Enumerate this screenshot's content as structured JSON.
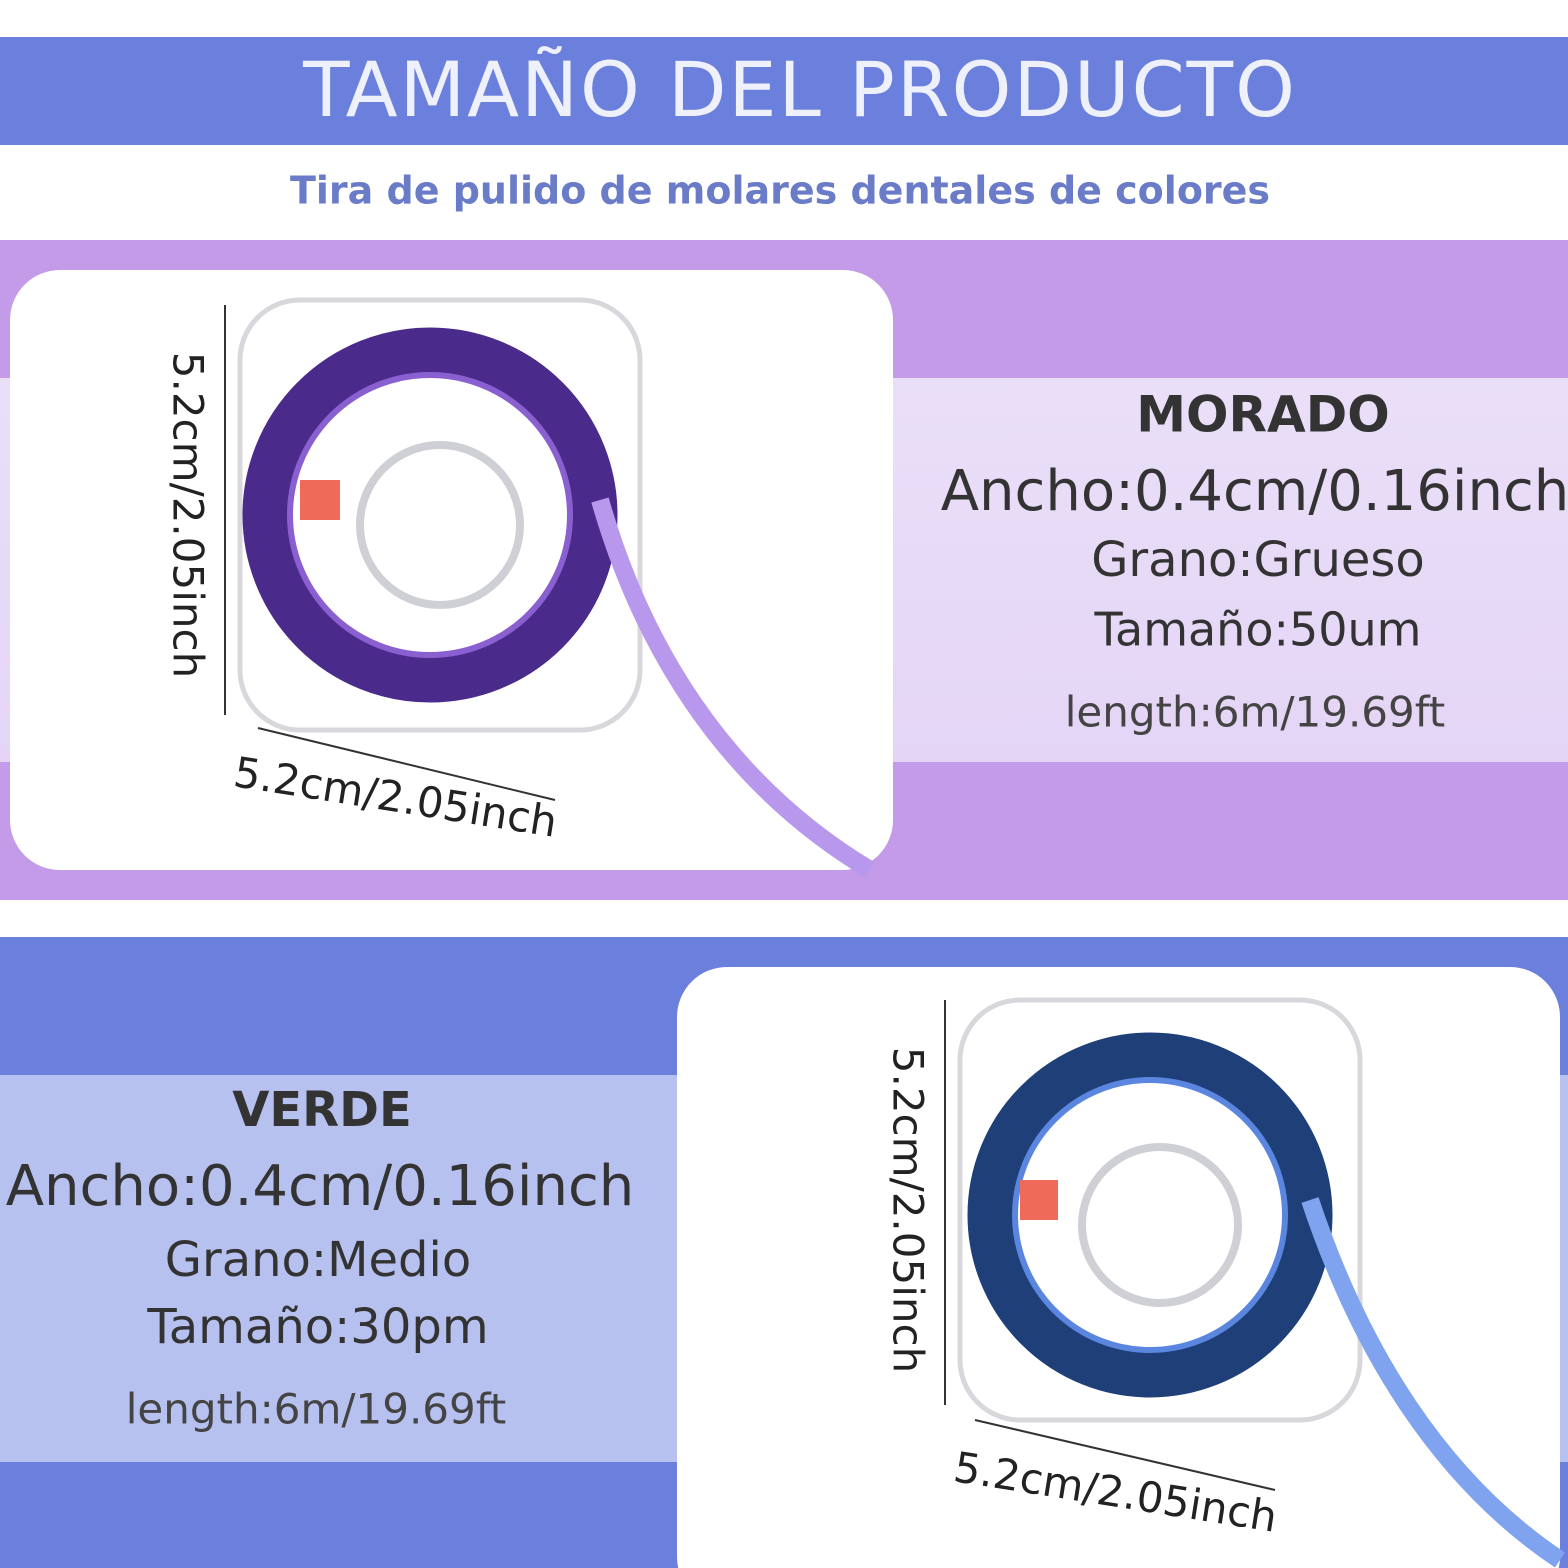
{
  "header": {
    "title": "TAMAÑO DEL PRODUCTO",
    "subtitle": "Tira de pulido de molares dentales de colores"
  },
  "sections": [
    {
      "name": "MORADO",
      "width": "Ancho:0.4cm/0.16inch",
      "grain": "Grano:Grueso",
      "size": "Tamaño:50um",
      "length": "length:6m/19.69ft",
      "dimension": "5.2cm/2.05inch"
    },
    {
      "name": "VERDE",
      "width": "Ancho:0.4cm/0.16inch",
      "grain": "Grano:Medio",
      "size": "Tamaño:30pm",
      "length": "length:6m/19.69ft",
      "dimension": "5.2cm/2.05inch"
    }
  ]
}
